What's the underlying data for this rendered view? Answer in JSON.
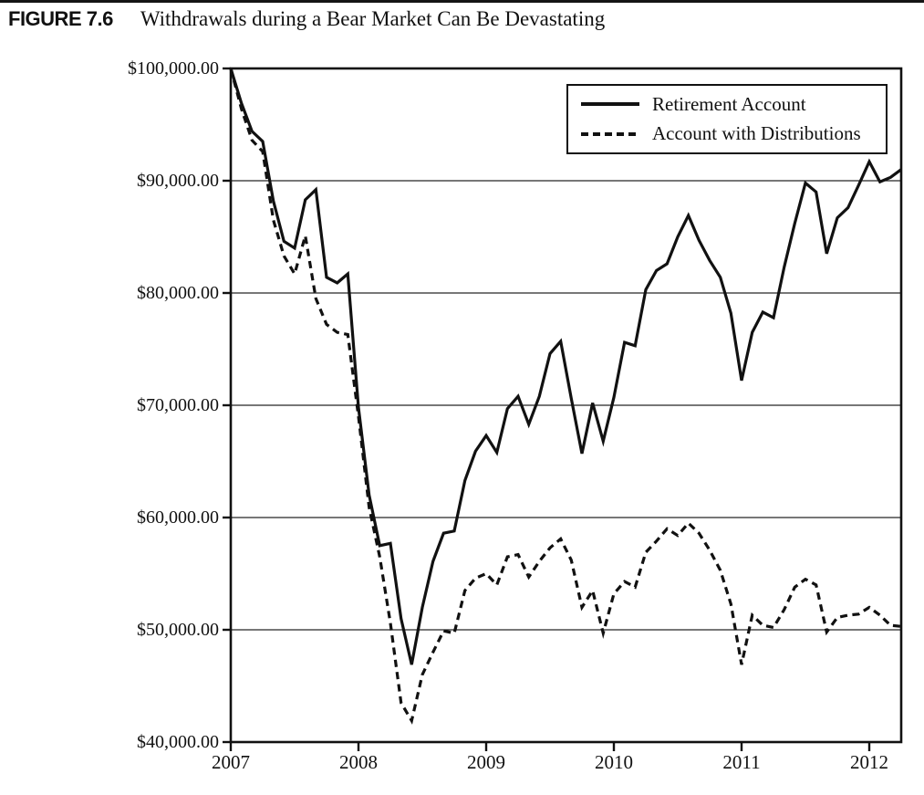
{
  "figure": {
    "label": "FIGURE 7.6",
    "title": "Withdrawals during a Bear Market Can Be Devastating"
  },
  "chart_data": {
    "type": "line",
    "title": "Withdrawals during a Bear Market Can Be Devastating",
    "x_unit": "month",
    "x_start": "2007-01",
    "xlabel": "",
    "ylabel": "",
    "ylim": [
      40000,
      100000
    ],
    "grid": "horizontal",
    "legend_position": "top-right",
    "colors": {
      "line": "#111111",
      "grid": "#2a2a2a",
      "text": "#111111",
      "background": "#ffffff"
    },
    "y_ticks": [
      {
        "label": "$100,000.00",
        "value": 100000
      },
      {
        "label": "$90,000.00",
        "value": 90000
      },
      {
        "label": "$80,000.00",
        "value": 80000
      },
      {
        "label": "$70,000.00",
        "value": 70000
      },
      {
        "label": "$60,000.00",
        "value": 60000
      },
      {
        "label": "$50,000.00",
        "value": 50000
      },
      {
        "label": "$40,000.00",
        "value": 40000
      }
    ],
    "x_ticks": [
      {
        "label": "2007",
        "month": 0
      },
      {
        "label": "2008",
        "month": 12
      },
      {
        "label": "2009",
        "month": 24
      },
      {
        "label": "2010",
        "month": 36
      },
      {
        "label": "2011",
        "month": 48
      },
      {
        "label": "2012",
        "month": 60
      }
    ],
    "series": [
      {
        "name": "Retirement Account",
        "style": "solid",
        "values": [
          100000,
          96900,
          94400,
          93500,
          88200,
          84600,
          84000,
          88300,
          89200,
          81400,
          80900,
          81700,
          69800,
          62000,
          57500,
          57700,
          51000,
          46900,
          52000,
          56100,
          58600,
          58800,
          63300,
          65900,
          67300,
          65800,
          69700,
          70800,
          68300,
          70800,
          74600,
          75700,
          70600,
          65700,
          70200,
          66800,
          70700,
          75600,
          75300,
          80300,
          82000,
          82600,
          85000,
          86900,
          84700,
          82900,
          81400,
          78200,
          72200,
          76500,
          78300,
          77800,
          82300,
          86200,
          89800,
          89000,
          83500,
          86700,
          87600,
          89600,
          91700,
          89900,
          90300,
          91000
        ]
      },
      {
        "name": "Account with Distributions",
        "style": "dashed",
        "values": [
          100000,
          96400,
          93600,
          92600,
          86500,
          83300,
          81700,
          85100,
          79500,
          77200,
          76500,
          76300,
          69000,
          60900,
          56500,
          50600,
          43500,
          41900,
          46000,
          48000,
          49900,
          49700,
          53500,
          54600,
          55000,
          54000,
          56500,
          56700,
          54700,
          56100,
          57300,
          58100,
          56200,
          52000,
          53500,
          49700,
          53200,
          54300,
          53800,
          56900,
          57900,
          59000,
          58400,
          59500,
          58600,
          57100,
          55300,
          52300,
          46900,
          51300,
          50400,
          50200,
          51800,
          53800,
          54500,
          54000,
          49800,
          51100,
          51300,
          51400,
          52000,
          51300,
          50400,
          50300
        ]
      }
    ]
  }
}
